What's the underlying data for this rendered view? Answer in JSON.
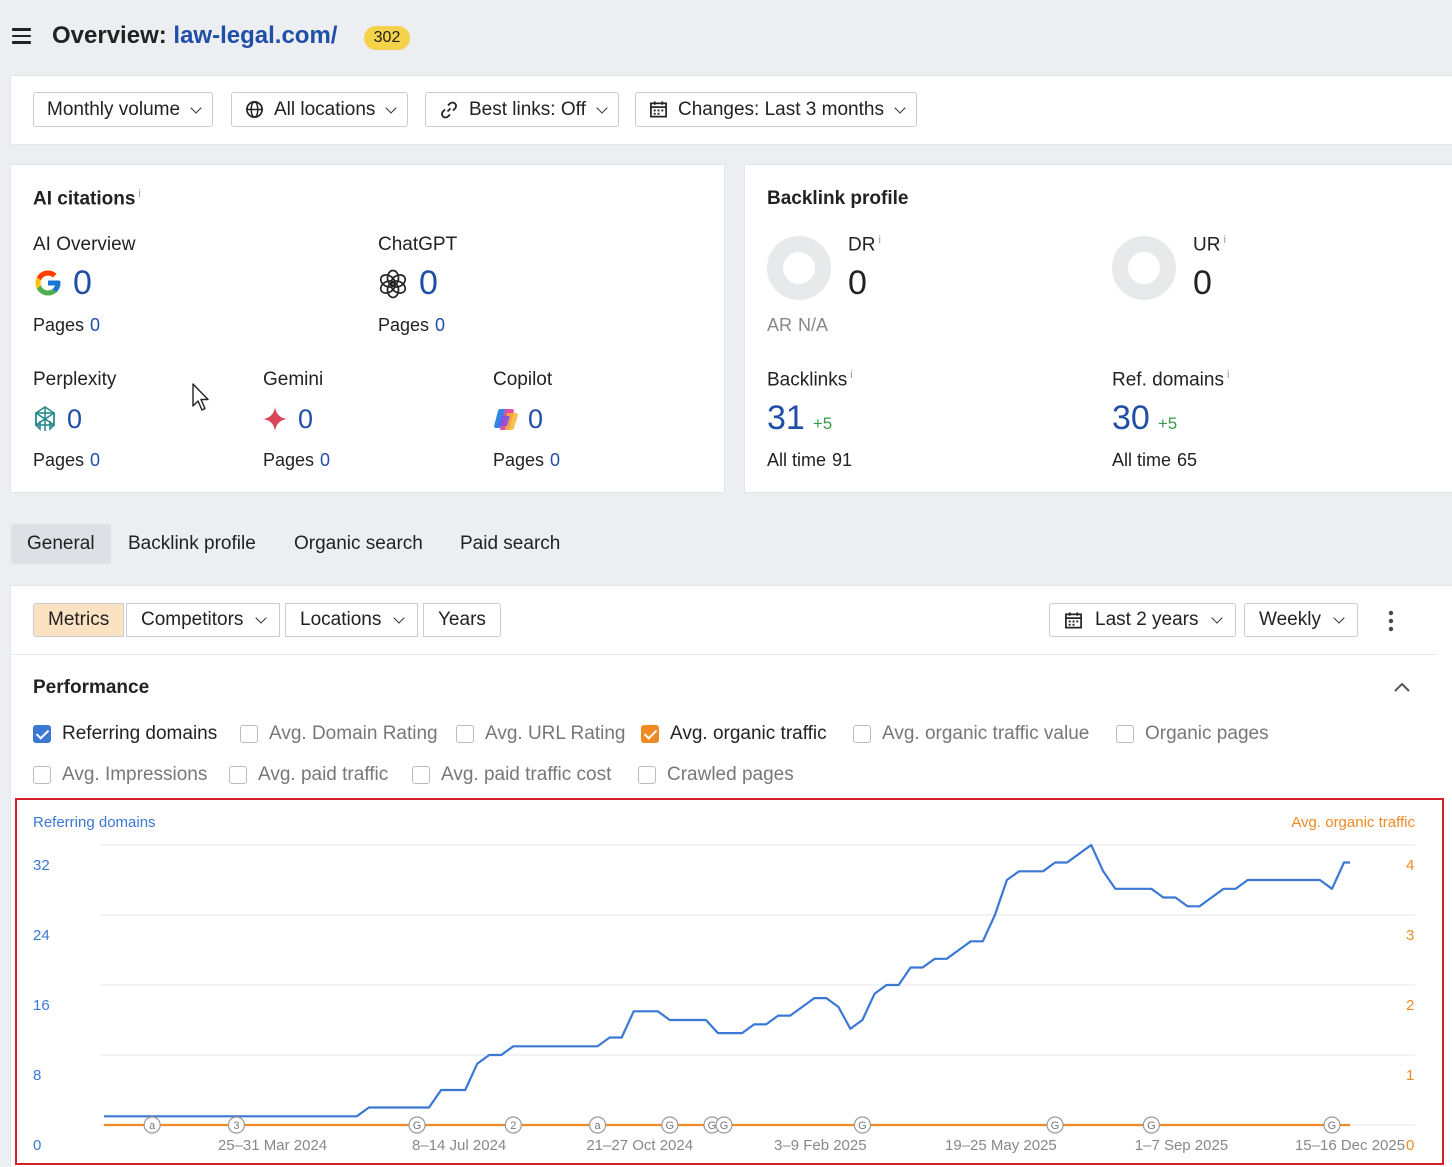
{
  "header": {
    "title_prefix": "Overview:",
    "site": "law-legal.com/",
    "status_badge": "302"
  },
  "filters": [
    {
      "label": "Monthly volume",
      "icon": ""
    },
    {
      "label": "All locations",
      "icon": "globe-icon"
    },
    {
      "label": "Best links: Off",
      "icon": "link-icon"
    },
    {
      "label": "Changes: Last 3 months",
      "icon": "calendar-icon"
    }
  ],
  "ai_citations": {
    "title": "AI citations",
    "info": "i",
    "pages_label": "Pages",
    "items": [
      {
        "name": "AI Overview",
        "value": "0",
        "pages": "0",
        "icon": "google-icon"
      },
      {
        "name": "ChatGPT",
        "value": "0",
        "pages": "0",
        "icon": "chatgpt-icon"
      },
      {
        "name": "Perplexity",
        "value": "0",
        "pages": "0",
        "icon": "perplexity-icon"
      },
      {
        "name": "Gemini",
        "value": "0",
        "pages": "0",
        "icon": "gemini-icon"
      },
      {
        "name": "Copilot",
        "value": "0",
        "pages": "0",
        "icon": "copilot-icon"
      }
    ]
  },
  "backlink_profile": {
    "title": "Backlink profile",
    "dr_label": "DR",
    "dr_value": "0",
    "ar_label": "AR",
    "ar_value": "N/A",
    "ur_label": "UR",
    "ur_value": "0",
    "info": "i",
    "backlinks_label": "Backlinks",
    "backlinks_value": "31",
    "backlinks_delta": "+5",
    "backlinks_alltime_label": "All time",
    "backlinks_alltime": "91",
    "refdomains_label": "Ref. domains",
    "refdomains_value": "30",
    "refdomains_delta": "+5",
    "refdomains_alltime_label": "All time",
    "refdomains_alltime": "65"
  },
  "tabs": [
    "General",
    "Backlink profile",
    "Organic search",
    "Paid search"
  ],
  "toolbar": {
    "segments": [
      "Metrics",
      "Competitors",
      "Locations",
      "Years"
    ],
    "range": "Last 2 years",
    "interval": "Weekly"
  },
  "performance": {
    "title": "Performance",
    "checkboxes": [
      {
        "label": "Referring domains",
        "checked": true,
        "color": "#3a78d4"
      },
      {
        "label": "Avg. Domain Rating",
        "checked": false
      },
      {
        "label": "Avg. URL Rating",
        "checked": false
      },
      {
        "label": "Avg. organic traffic",
        "checked": true,
        "color": "#f08a24"
      },
      {
        "label": "Avg. organic traffic value",
        "checked": false
      },
      {
        "label": "Organic pages",
        "checked": false
      },
      {
        "label": "Avg. Impressions",
        "checked": false
      },
      {
        "label": "Avg. paid traffic",
        "checked": false
      },
      {
        "label": "Avg. paid traffic cost",
        "checked": false
      },
      {
        "label": "Crawled pages",
        "checked": false
      }
    ]
  },
  "chart_data": {
    "type": "line",
    "left_axis_label": "Referring domains",
    "right_axis_label": "Avg. organic traffic",
    "left_ticks": [
      "0",
      "8",
      "16",
      "24",
      "32"
    ],
    "right_ticks": [
      "0",
      "1",
      "2",
      "3",
      "4"
    ],
    "left_ylim": [
      0,
      32
    ],
    "right_ylim": [
      0,
      4
    ],
    "x_range_weeks": [
      0,
      103
    ],
    "x_ticks": [
      {
        "label": "25–31 Mar 2024",
        "week": 14
      },
      {
        "label": "8–14 Jul 2024",
        "week": 29.5
      },
      {
        "label": "21–27 Oct 2024",
        "week": 44.5
      },
      {
        "label": "3–9 Feb 2025",
        "week": 59.5
      },
      {
        "label": "19–25 May 2025",
        "week": 74.5
      },
      {
        "label": "1–7 Sep 2025",
        "week": 89.5
      },
      {
        "label": "15–16 Dec 2025",
        "week": 103.5
      }
    ],
    "series": [
      {
        "name": "Referring domains",
        "color": "#3a78d4",
        "axis": "left",
        "points": [
          [
            0,
            1
          ],
          [
            21,
            1
          ],
          [
            22,
            2
          ],
          [
            27,
            2
          ],
          [
            28,
            4
          ],
          [
            30,
            4
          ],
          [
            31,
            7
          ],
          [
            32,
            8
          ],
          [
            33,
            8
          ],
          [
            34,
            9
          ],
          [
            41,
            9
          ],
          [
            42,
            10
          ],
          [
            43,
            10
          ],
          [
            44,
            13
          ],
          [
            46,
            13
          ],
          [
            47,
            12
          ],
          [
            50,
            12
          ],
          [
            51,
            10.5
          ],
          [
            53,
            10.5
          ],
          [
            54,
            11.5
          ],
          [
            55,
            11.5
          ],
          [
            56,
            12.5
          ],
          [
            57,
            12.5
          ],
          [
            58,
            13.5
          ],
          [
            59,
            14.5
          ],
          [
            60,
            14.5
          ],
          [
            61,
            13.5
          ],
          [
            62,
            11
          ],
          [
            63,
            12
          ],
          [
            64,
            15
          ],
          [
            65,
            16
          ],
          [
            66,
            16
          ],
          [
            67,
            18
          ],
          [
            68,
            18
          ],
          [
            69,
            19
          ],
          [
            70,
            19
          ],
          [
            71,
            20
          ],
          [
            72,
            21
          ],
          [
            73,
            21
          ],
          [
            74,
            24
          ],
          [
            75,
            28
          ],
          [
            76,
            29
          ],
          [
            78,
            29
          ],
          [
            79,
            30
          ],
          [
            80,
            30
          ],
          [
            81,
            31
          ],
          [
            82,
            32
          ],
          [
            83,
            29
          ],
          [
            84,
            27
          ],
          [
            87,
            27
          ],
          [
            88,
            26
          ],
          [
            89,
            26
          ],
          [
            90,
            25
          ],
          [
            91,
            25
          ],
          [
            92,
            26
          ],
          [
            93,
            27
          ],
          [
            94,
            27
          ],
          [
            95,
            28
          ],
          [
            101,
            28
          ],
          [
            102,
            27
          ],
          [
            103,
            30
          ],
          [
            103.5,
            30
          ]
        ]
      },
      {
        "name": "Avg. organic traffic",
        "color": "#f08a24",
        "axis": "right",
        "points": [
          [
            0,
            0
          ],
          [
            103.5,
            0
          ]
        ]
      }
    ],
    "annotations": [
      {
        "label": "a",
        "week": 4
      },
      {
        "label": "3",
        "week": 11
      },
      {
        "label": "G",
        "week": 26
      },
      {
        "label": "2",
        "week": 34
      },
      {
        "label": "a",
        "week": 41
      },
      {
        "label": "G",
        "week": 47
      },
      {
        "label": "G",
        "week": 50.5
      },
      {
        "label": "G",
        "week": 51.5
      },
      {
        "label": "G",
        "week": 63
      },
      {
        "label": "G",
        "week": 79
      },
      {
        "label": "G",
        "week": 87
      },
      {
        "label": "G",
        "week": 102
      }
    ]
  }
}
